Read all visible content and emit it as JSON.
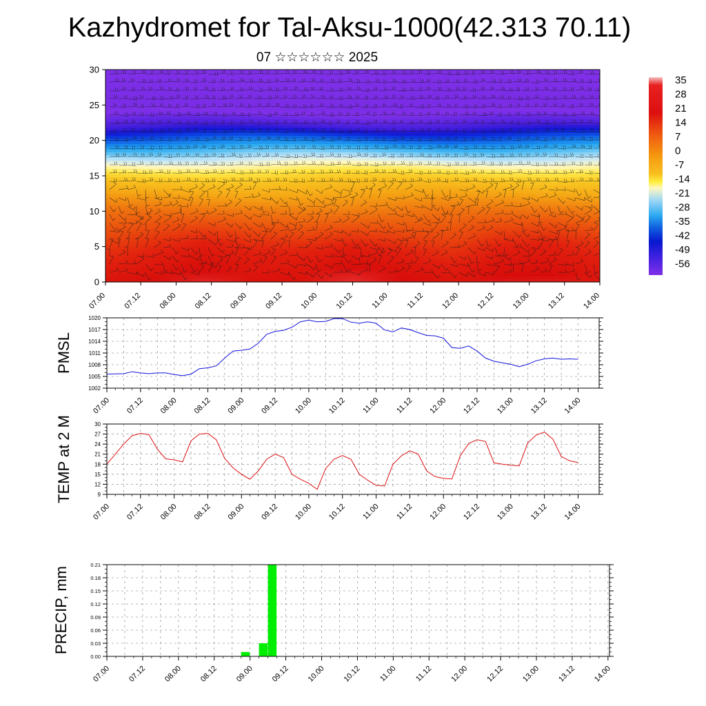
{
  "title": "Kazhydromet for Tal-Aksu-1000(42.313 70.11)",
  "subtitle": "07 ☆☆☆☆☆☆ 2025",
  "colors": {
    "pmsl_line": "#1010dd",
    "temp_line": "#dd1010",
    "precip_bar": "#00ee00"
  },
  "time_ticks": [
    "07.00",
    "07.12",
    "08.00",
    "08.12",
    "09.00",
    "09.12",
    "10.00",
    "10.12",
    "11.00",
    "11.12",
    "12.00",
    "12.12",
    "13.00",
    "13.12",
    "14.00"
  ],
  "colorbar": {
    "labels": [
      "35",
      "28",
      "21",
      "14",
      "7",
      "0",
      "-7",
      "-14",
      "-21",
      "-28",
      "-35",
      "-42",
      "-49",
      "-56"
    ]
  },
  "chart_data": [
    {
      "type": "heatmap",
      "name": "cross-section temperature with wind barbs",
      "ylim": [
        0,
        30
      ],
      "yticks": [
        "0",
        "5",
        "10",
        "15",
        "20",
        "25",
        "30"
      ],
      "x": [
        "07.00",
        "07.12",
        "08.00",
        "08.12",
        "09.00",
        "09.12",
        "10.00",
        "10.12",
        "11.00",
        "11.12",
        "12.00",
        "12.12",
        "13.00",
        "13.12",
        "14.00"
      ],
      "colormap": "rainbow: violet (cold, -56) to red (warm, 35)",
      "level_temperature_profile": {
        "levels": [
          0,
          5,
          10,
          15,
          18,
          20,
          22,
          25,
          30
        ],
        "temperature": [
          30,
          21,
          10,
          -5,
          -20,
          -35,
          -50,
          -60,
          -56
        ]
      },
      "overlay": "wind barbs"
    },
    {
      "type": "line",
      "name": "PMSL",
      "ylabel": "PMSL",
      "ylim": [
        1002,
        1020
      ],
      "yticks": [
        "1002",
        "1005",
        "1008",
        "1011",
        "1014",
        "1017",
        "1020"
      ],
      "xticks": [
        "07.00",
        "07.12",
        "08.00",
        "08.12",
        "09.00",
        "09.12",
        "10.00",
        "10.12",
        "11.00",
        "11.12",
        "12.00",
        "12.12",
        "13.00",
        "13.12",
        "14.00"
      ],
      "x_hours": [
        0,
        6,
        9,
        12,
        15,
        18,
        21,
        24,
        27,
        30,
        33,
        36,
        39,
        42,
        45,
        48,
        51,
        54,
        57,
        60,
        63,
        66,
        69,
        72,
        75,
        78,
        81,
        84,
        87,
        90,
        93,
        96,
        99,
        102,
        105,
        108,
        111,
        114,
        117,
        120,
        123,
        126,
        129,
        132,
        135,
        138,
        141,
        144,
        147,
        150,
        153,
        156,
        159,
        162,
        165,
        168
      ],
      "values": [
        1005.6,
        1005.7,
        1006.2,
        1005.9,
        1005.7,
        1005.9,
        1005.9,
        1005.5,
        1005.2,
        1005.6,
        1007.0,
        1007.2,
        1007.7,
        1009.7,
        1011.5,
        1011.7,
        1012.0,
        1013.5,
        1015.8,
        1016.5,
        1016.8,
        1017.6,
        1019.0,
        1019.4,
        1019.0,
        1019.1,
        1019.8,
        1019.8,
        1018.9,
        1018.6,
        1019.0,
        1018.6,
        1016.9,
        1016.4,
        1017.4,
        1017.0,
        1016.2,
        1015.5,
        1015.4,
        1014.8,
        1012.4,
        1012.2,
        1012.8,
        1011.5,
        1009.7,
        1008.9,
        1008.5,
        1008.1,
        1007.5,
        1008.1,
        1009.0,
        1009.5,
        1009.7,
        1009.4,
        1009.5,
        1009.4
      ]
    },
    {
      "type": "line",
      "name": "TEMP at 2 M",
      "ylabel": "TEMP at 2 M",
      "ylim": [
        9,
        30
      ],
      "yticks": [
        "9",
        "12",
        "15",
        "18",
        "21",
        "24",
        "27",
        "30"
      ],
      "xticks": [
        "07.00",
        "07.12",
        "08.00",
        "08.12",
        "09.00",
        "09.12",
        "10.00",
        "10.12",
        "11.00",
        "11.12",
        "12.00",
        "12.12",
        "13.00",
        "13.12",
        "14.00"
      ],
      "x_hours": [
        0,
        6,
        9,
        12,
        15,
        18,
        21,
        24,
        27,
        30,
        33,
        36,
        39,
        42,
        45,
        48,
        51,
        54,
        57,
        60,
        63,
        66,
        69,
        72,
        75,
        78,
        81,
        84,
        87,
        90,
        93,
        96,
        99,
        102,
        105,
        108,
        111,
        114,
        117,
        120,
        123,
        126,
        129,
        132,
        135,
        138,
        141,
        144,
        147,
        150,
        153,
        156,
        159,
        162,
        165,
        168
      ],
      "values": [
        18.0,
        24.0,
        26.5,
        27.2,
        26.8,
        22.5,
        19.6,
        19.3,
        18.7,
        25.0,
        27.0,
        27.2,
        25.3,
        19.7,
        16.9,
        15.0,
        13.5,
        16.0,
        19.5,
        21.0,
        20.0,
        15.0,
        13.5,
        12.3,
        10.5,
        16.7,
        19.5,
        20.6,
        19.5,
        15.0,
        13.2,
        11.7,
        11.5,
        18.0,
        20.5,
        22.0,
        21.0,
        16.0,
        14.3,
        13.8,
        13.6,
        20.5,
        24.2,
        25.3,
        24.8,
        18.4,
        18.0,
        17.7,
        17.5,
        24.3,
        26.7,
        27.6,
        25.5,
        20.3,
        19.0,
        18.5
      ]
    },
    {
      "type": "bar",
      "name": "PRECIP, mm",
      "ylabel": "PRECIP, mm",
      "ylim": [
        0,
        0.21
      ],
      "yticks": [
        "0.00",
        "0.03",
        "0.06",
        "0.09",
        "0.12",
        "0.15",
        "0.18",
        "0.21"
      ],
      "xticks": [
        "07.00",
        "07.12",
        "08.00",
        "08.12",
        "09.00",
        "09.12",
        "10.00",
        "10.12",
        "11.00",
        "11.12",
        "12.00",
        "12.12",
        "13.00",
        "13.12",
        "14.00"
      ],
      "x_hours": [
        45,
        51,
        54
      ],
      "values": [
        0.01,
        0.03,
        0.21
      ]
    }
  ]
}
